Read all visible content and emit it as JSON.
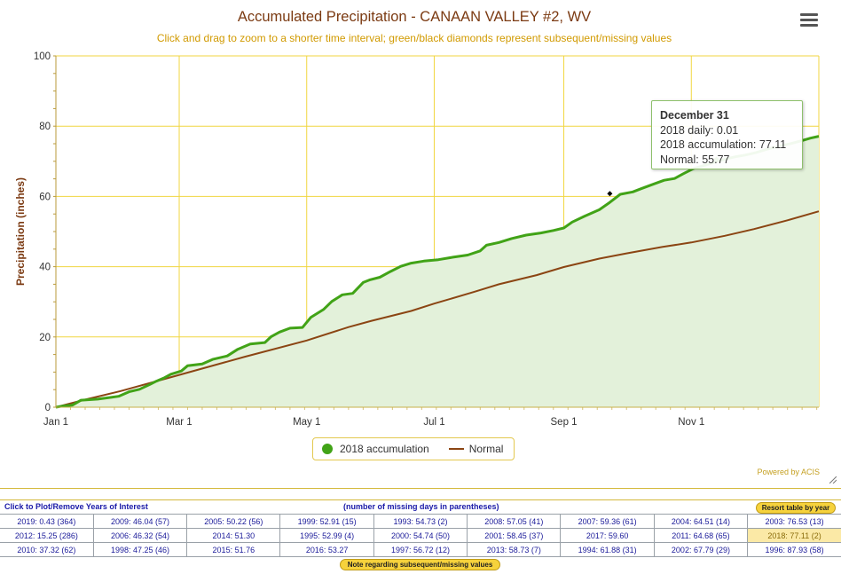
{
  "chart_data": {
    "type": "line",
    "title": "Accumulated Precipitation - CANAAN VALLEY #2, WV",
    "subtitle": "Click and drag to zoom to a shorter time interval; green/black diamonds represent subsequent/missing values",
    "ylabel": "Precipitation (inches)",
    "xlabel": "",
    "xlim": [
      0,
      365
    ],
    "ylim": [
      0,
      100
    ],
    "yticks": [
      0,
      20,
      40,
      60,
      80,
      100
    ],
    "xticks": [
      {
        "day": 0,
        "label": "Jan 1"
      },
      {
        "day": 59,
        "label": "Mar 1"
      },
      {
        "day": 120,
        "label": "May 1"
      },
      {
        "day": 181,
        "label": "Jul 1"
      },
      {
        "day": 243,
        "label": "Sep 1"
      },
      {
        "day": 304,
        "label": "Nov 1"
      }
    ],
    "grid": true,
    "legend_position": "bottom-center",
    "series": [
      {
        "name": "2018 accumulation",
        "color": "#41a317",
        "fill": "#e3f1da",
        "points": [
          [
            0,
            0
          ],
          [
            3,
            0.3
          ],
          [
            8,
            0.6
          ],
          [
            12,
            2.0
          ],
          [
            20,
            2.3
          ],
          [
            30,
            3.1
          ],
          [
            35,
            4.4
          ],
          [
            40,
            5.1
          ],
          [
            45,
            6.5
          ],
          [
            48,
            7.4
          ],
          [
            52,
            8.4
          ],
          [
            55,
            9.4
          ],
          [
            60,
            10.3
          ],
          [
            63,
            11.8
          ],
          [
            70,
            12.3
          ],
          [
            75,
            13.6
          ],
          [
            82,
            14.6
          ],
          [
            87,
            16.5
          ],
          [
            93,
            18.0
          ],
          [
            100,
            18.4
          ],
          [
            103,
            20.1
          ],
          [
            107,
            21.4
          ],
          [
            112,
            22.5
          ],
          [
            118,
            22.7
          ],
          [
            122,
            25.6
          ],
          [
            128,
            27.8
          ],
          [
            132,
            30.1
          ],
          [
            137,
            32.0
          ],
          [
            142,
            32.4
          ],
          [
            147,
            35.5
          ],
          [
            150,
            36.2
          ],
          [
            155,
            37.0
          ],
          [
            160,
            38.6
          ],
          [
            165,
            40.1
          ],
          [
            170,
            41.0
          ],
          [
            176,
            41.6
          ],
          [
            183,
            42.0
          ],
          [
            190,
            42.7
          ],
          [
            197,
            43.3
          ],
          [
            203,
            44.5
          ],
          [
            206,
            46.1
          ],
          [
            212,
            46.9
          ],
          [
            218,
            48.0
          ],
          [
            225,
            49.0
          ],
          [
            232,
            49.6
          ],
          [
            238,
            50.3
          ],
          [
            243,
            51.0
          ],
          [
            247,
            52.7
          ],
          [
            253,
            54.4
          ],
          [
            260,
            56.2
          ],
          [
            265,
            58.3
          ],
          [
            270,
            60.6
          ],
          [
            276,
            61.3
          ],
          [
            280,
            62.2
          ],
          [
            285,
            63.3
          ],
          [
            291,
            64.6
          ],
          [
            296,
            65.1
          ],
          [
            300,
            66.4
          ],
          [
            305,
            67.9
          ],
          [
            310,
            68.8
          ],
          [
            315,
            69.7
          ],
          [
            320,
            70.6
          ],
          [
            325,
            71.3
          ],
          [
            330,
            71.8
          ],
          [
            335,
            72.5
          ],
          [
            340,
            73.4
          ],
          [
            346,
            74.3
          ],
          [
            352,
            75.1
          ],
          [
            357,
            75.9
          ],
          [
            361,
            76.6
          ],
          [
            365,
            77.11
          ]
        ]
      },
      {
        "name": "Normal",
        "color": "#8b4513",
        "points": [
          [
            0,
            0
          ],
          [
            15,
            2.3
          ],
          [
            31,
            4.6
          ],
          [
            59,
            9.2
          ],
          [
            90,
            14.3
          ],
          [
            120,
            19.0
          ],
          [
            140,
            22.8
          ],
          [
            151,
            24.6
          ],
          [
            170,
            27.4
          ],
          [
            181,
            29.5
          ],
          [
            200,
            32.8
          ],
          [
            212,
            35.0
          ],
          [
            230,
            37.6
          ],
          [
            243,
            39.9
          ],
          [
            260,
            42.3
          ],
          [
            273,
            43.8
          ],
          [
            290,
            45.6
          ],
          [
            304,
            46.9
          ],
          [
            320,
            48.8
          ],
          [
            334,
            50.7
          ],
          [
            350,
            53.2
          ],
          [
            365,
            55.77
          ]
        ]
      }
    ],
    "missing_marker": {
      "day": 265,
      "value": 60.8
    },
    "tooltip_marker": {
      "day": 316,
      "value": 70.6
    }
  },
  "tooltip": {
    "date": "December 31",
    "daily": "2018 daily: 0.01",
    "accum": "2018 accumulation: 77.11",
    "normal": "Normal: 55.77"
  },
  "legend": {
    "accum_label": "2018 accumulation",
    "normal_label": "Normal"
  },
  "powered_by": "Powered by ACIS",
  "years_table": {
    "click_label": "Click to Plot/Remove Years of Interest",
    "missing_note": "(number of missing days in parentheses)",
    "resort_button": "Resort table by year",
    "note_button": "Note regarding subsequent/missing values",
    "rows": [
      [
        "2019: 0.43 (364)",
        "2009: 46.04 (57)",
        "2005: 50.22 (56)",
        "1999: 52.91 (15)",
        "1993: 54.73 (2)",
        "2008: 57.05 (41)",
        "2007: 59.36 (61)",
        "2004: 64.51 (14)",
        "2003: 76.53 (13)"
      ],
      [
        "2012: 15.25 (286)",
        "2006: 46.32 (54)",
        "2014: 51.30",
        "1995: 52.99 (4)",
        "2000: 54.74 (50)",
        "2001: 58.45 (37)",
        "2017: 59.60",
        "2011: 64.68 (65)",
        "2018: 77.11 (2)"
      ],
      [
        "2010: 37.32 (62)",
        "1998: 47.25 (46)",
        "2015: 51.76",
        "2016: 53.27",
        "1997: 56.72 (12)",
        "2013: 58.73 (7)",
        "1994: 61.88 (31)",
        "2002: 67.79 (29)",
        "1996: 87.93 (58)"
      ]
    ],
    "selected_cell": "2018: 77.11 (2)"
  }
}
